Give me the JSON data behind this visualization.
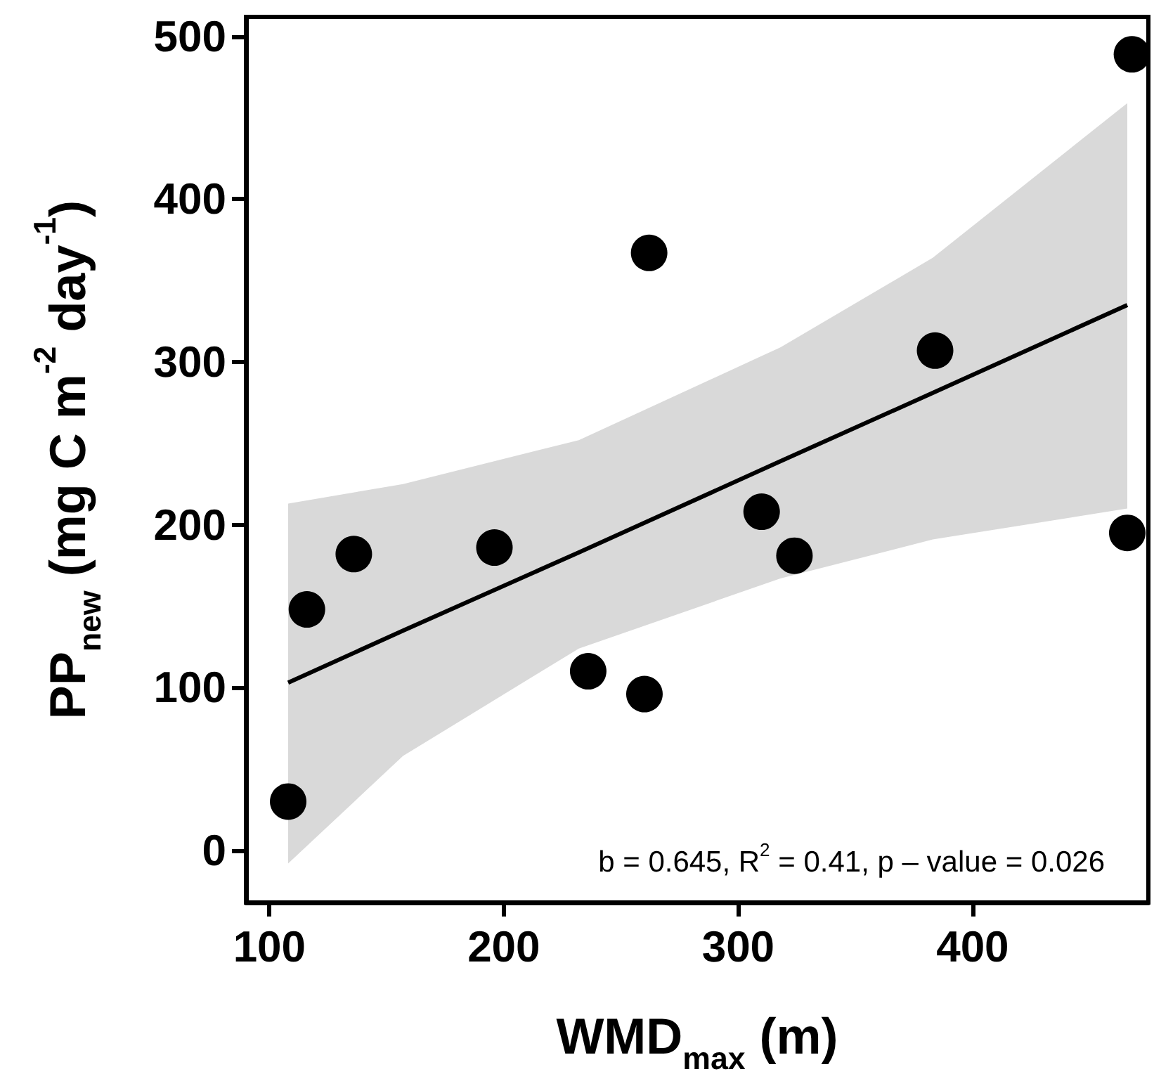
{
  "chart_data": {
    "type": "scatter",
    "xlabel": "WMD$_{max}$ (m)",
    "ylabel": "PP$_{new}$ (mg C m$^{-2}$ day$^{-1}$)",
    "annotations": [
      "b = 0.645, R$^{2}$ = 0.41, p – value = 0.026"
    ],
    "xlim": [
      90,
      475
    ],
    "xticks": [
      100,
      200,
      300,
      400
    ],
    "ylim": [
      -32,
      512
    ],
    "yticks": [
      0,
      100,
      200,
      300,
      400,
      500
    ],
    "grid": false,
    "series": [
      {
        "color": "#000000",
        "marker": "circle",
        "x": [
          108,
          116,
          136,
          196,
          236,
          260,
          262,
          310,
          324,
          384,
          466,
          468
        ],
        "values": [
          30,
          148,
          182,
          186,
          110,
          96,
          367,
          208,
          181,
          307,
          195,
          489
        ]
      },
      {
        "type": "line",
        "color": "#000000",
        "line_style": "solid",
        "x": [
          108,
          157,
          232,
          318,
          383,
          466
        ],
        "values": [
          103,
          135,
          183,
          239,
          281,
          335
        ],
        "lower": [
          -8,
          58,
          124,
          167,
          191,
          210
        ],
        "upper": [
          213,
          225,
          252,
          309,
          364,
          459
        ]
      }
    ]
  }
}
